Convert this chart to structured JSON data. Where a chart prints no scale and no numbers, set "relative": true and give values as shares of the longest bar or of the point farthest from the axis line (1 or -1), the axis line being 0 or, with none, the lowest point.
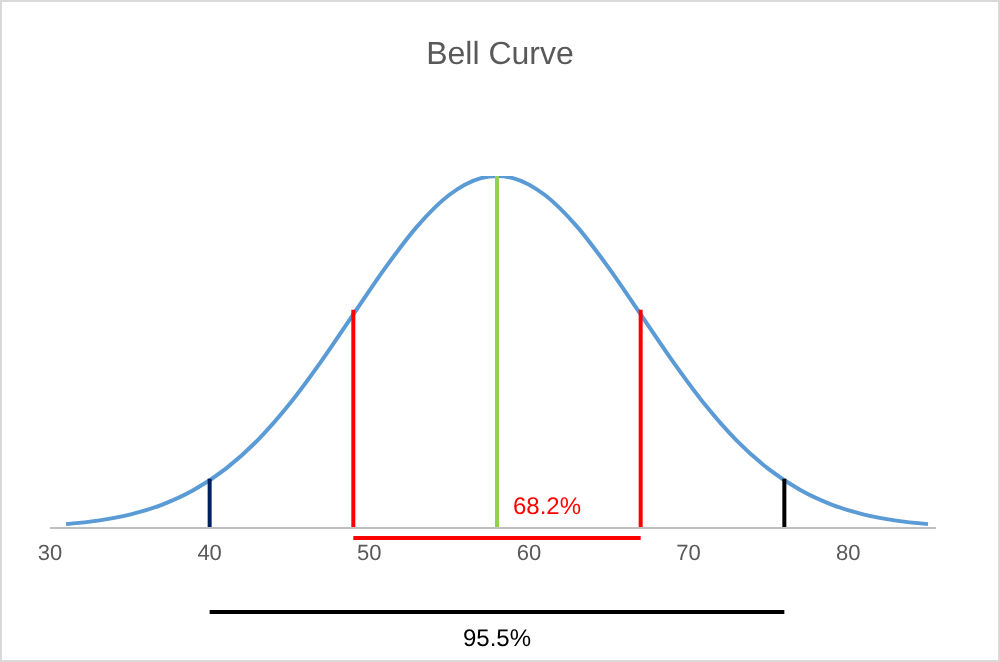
{
  "chart_data": {
    "type": "line",
    "title": "Bell Curve",
    "relative": true,
    "xlim": [
      30,
      85.5
    ],
    "xticks": [
      30,
      40,
      50,
      60,
      70,
      80
    ],
    "tick_labels": "x",
    "grid": false,
    "legend": false,
    "marker": "none",
    "line_style": "solid",
    "series": [
      {
        "color": "#5b9bd5",
        "x": [
          31,
          33,
          35,
          37,
          39,
          41,
          43,
          45,
          47,
          49,
          51,
          53,
          55,
          57,
          58,
          59,
          61,
          63,
          65,
          67,
          69,
          71,
          73,
          75,
          77,
          79,
          81,
          83,
          85
        ],
        "values": [
          0.011,
          0.021,
          0.038,
          0.066,
          0.108,
          0.168,
          0.249,
          0.352,
          0.474,
          0.607,
          0.739,
          0.857,
          0.946,
          0.994,
          1,
          0.994,
          0.946,
          0.857,
          0.739,
          0.607,
          0.474,
          0.352,
          0.249,
          0.168,
          0.108,
          0.066,
          0.038,
          0.021,
          0.011
        ]
      },
      {
        "color": "#002060",
        "x": [
          40,
          40
        ],
        "values": [
          0,
          0.14
        ]
      },
      {
        "color": "#ff0000",
        "x": [
          49,
          49
        ],
        "values": [
          0,
          0.62
        ]
      },
      {
        "color": "#92d050",
        "x": [
          58,
          58
        ],
        "values": [
          0,
          1
        ]
      },
      {
        "color": "#ff0000",
        "x": [
          67,
          67
        ],
        "values": [
          0,
          0.62
        ]
      },
      {
        "color": "#000000",
        "x": [
          76,
          76
        ],
        "values": [
          0,
          0.14
        ]
      }
    ],
    "annotations": [
      "68.2%",
      "95.5%"
    ]
  }
}
